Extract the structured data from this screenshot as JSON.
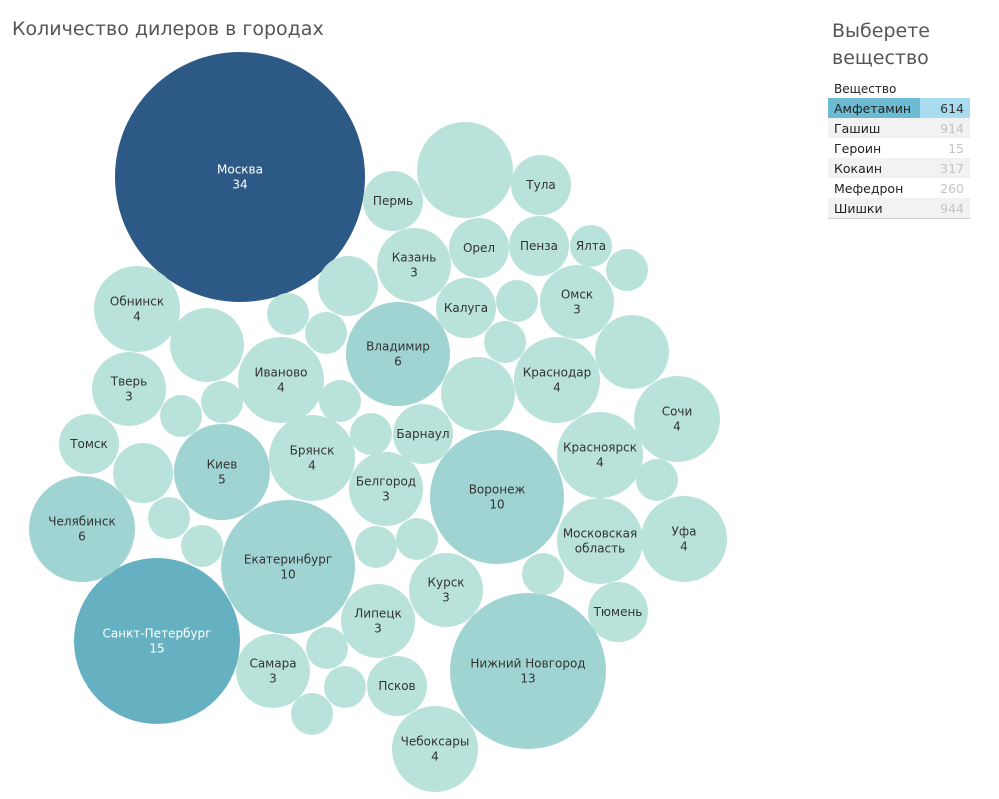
{
  "title": "Количество дилеров в городах",
  "filter": {
    "title": "Выберете вещество",
    "header": "Вещество",
    "items": [
      {
        "label": "Амфетамин",
        "value": "614",
        "selected": true
      },
      {
        "label": "Гашиш",
        "value": "914",
        "selected": false
      },
      {
        "label": "Героин",
        "value": "15",
        "selected": false
      },
      {
        "label": "Кокаин",
        "value": "317",
        "selected": false
      },
      {
        "label": "Мефедрон",
        "value": "260",
        "selected": false
      },
      {
        "label": "Шишки",
        "value": "944",
        "selected": false
      }
    ]
  },
  "colors": {
    "max": "#2d5986",
    "high": "#65b1c2",
    "mid": "#9fd4d3",
    "low": "#b9e3da",
    "selected_bar": "#6dbad3",
    "selected_row": "#a9dcee"
  },
  "chart_data": {
    "type": "bubble",
    "title": "Количество дилеров в городах",
    "bubbles": [
      {
        "label": "Москва",
        "value": 34
      },
      {
        "label": "Санкт-Петербург",
        "value": 15
      },
      {
        "label": "Нижний Новгород",
        "value": 13
      },
      {
        "label": "Екатеринбург",
        "value": 10
      },
      {
        "label": "Воронеж",
        "value": 10
      },
      {
        "label": "Владимир",
        "value": 6
      },
      {
        "label": "Челябинск",
        "value": 6
      },
      {
        "label": "Киев",
        "value": 5
      },
      {
        "label": "Обнинск",
        "value": 4
      },
      {
        "label": "Иваново",
        "value": 4
      },
      {
        "label": "Брянск",
        "value": 4
      },
      {
        "label": "Краснодар",
        "value": 4
      },
      {
        "label": "Красноярск",
        "value": 4
      },
      {
        "label": "Сочи",
        "value": 4
      },
      {
        "label": "Уфа",
        "value": 4
      },
      {
        "label": "Чебоксары",
        "value": 4
      },
      {
        "label": "Тверь",
        "value": 3
      },
      {
        "label": "Казань",
        "value": 3
      },
      {
        "label": "Омск",
        "value": 3
      },
      {
        "label": "Белгород",
        "value": 3
      },
      {
        "label": "Курск",
        "value": 3
      },
      {
        "label": "Липецк",
        "value": 3
      },
      {
        "label": "Самара",
        "value": 3
      },
      {
        "label": "Московская область",
        "value": null
      },
      {
        "label": "Томск",
        "value": null
      },
      {
        "label": "Пермь",
        "value": null
      },
      {
        "label": "Тула",
        "value": null
      },
      {
        "label": "Орел",
        "value": null
      },
      {
        "label": "Пенза",
        "value": null
      },
      {
        "label": "Ялта",
        "value": null
      },
      {
        "label": "Калуга",
        "value": null
      },
      {
        "label": "Барнаул",
        "value": null
      },
      {
        "label": "Тюмень",
        "value": null
      },
      {
        "label": "Псков",
        "value": null
      },
      {
        "label": "",
        "value": null
      },
      {
        "label": "",
        "value": null
      },
      {
        "label": "",
        "value": null
      },
      {
        "label": "",
        "value": null
      },
      {
        "label": "",
        "value": null
      },
      {
        "label": "",
        "value": null
      },
      {
        "label": "",
        "value": null
      },
      {
        "label": "",
        "value": null
      },
      {
        "label": "",
        "value": null
      },
      {
        "label": "",
        "value": null
      },
      {
        "label": "",
        "value": null
      },
      {
        "label": "",
        "value": null
      },
      {
        "label": "",
        "value": null
      },
      {
        "label": "",
        "value": null
      },
      {
        "label": "",
        "value": null
      },
      {
        "label": "",
        "value": null
      },
      {
        "label": "",
        "value": null
      },
      {
        "label": "",
        "value": null
      },
      {
        "label": "",
        "value": null
      },
      {
        "label": "",
        "value": null
      },
      {
        "label": "",
        "value": null
      },
      {
        "label": "",
        "value": null
      },
      {
        "label": "",
        "value": null
      },
      {
        "label": "",
        "value": null
      }
    ]
  }
}
